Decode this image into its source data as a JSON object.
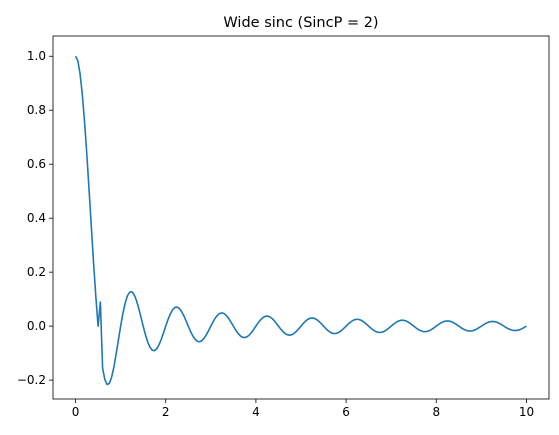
{
  "chart_data": {
    "type": "line",
    "title": "Wide sinc (SincP = 2)",
    "xlabel": "",
    "ylabel": "",
    "xlim": [
      -0.5,
      10.5
    ],
    "ylim": [
      -0.27,
      1.075
    ],
    "grid": false,
    "x_ticks": [
      0,
      2,
      4,
      6,
      8,
      10
    ],
    "x_tick_labels": [
      "0",
      "2",
      "4",
      "6",
      "8",
      "10"
    ],
    "y_ticks": [
      -0.2,
      0.0,
      0.2,
      0.4,
      0.6,
      0.8,
      1.0
    ],
    "y_tick_labels": [
      "−0.2",
      "0.0",
      "0.2",
      "0.4",
      "0.6",
      "0.8",
      "1.0"
    ],
    "series": [
      {
        "color": "#1f77b4",
        "x": [
          0,
          0.05,
          0.1,
          0.15,
          0.2,
          0.25,
          0.3,
          0.35,
          0.4,
          0.45,
          0.5,
          0.55,
          0.6,
          0.65,
          0.7,
          0.75,
          0.8,
          0.85,
          0.9,
          0.95,
          1.0,
          1.05,
          1.1,
          1.15,
          1.2,
          1.25,
          1.3,
          1.35,
          1.4,
          1.45,
          1.5,
          1.55,
          1.6,
          1.65,
          1.7,
          1.75,
          1.8,
          1.85,
          1.9,
          1.95,
          2.0,
          2.05,
          2.1,
          2.15,
          2.2,
          2.25,
          2.3,
          2.35,
          2.4,
          2.45,
          2.5,
          2.55,
          2.6,
          2.65,
          2.7,
          2.75,
          2.8,
          2.85,
          2.9,
          2.95,
          3.0,
          3.05,
          3.1,
          3.15,
          3.2,
          3.25,
          3.3,
          3.35,
          3.4,
          3.45,
          3.5,
          3.55,
          3.6,
          3.65,
          3.7,
          3.75,
          3.8,
          3.85,
          3.9,
          3.95,
          4.0,
          4.05,
          4.1,
          4.15,
          4.2,
          4.25,
          4.3,
          4.35,
          4.4,
          4.45,
          4.5,
          4.55,
          4.6,
          4.65,
          4.7,
          4.75,
          4.8,
          4.85,
          4.9,
          4.95,
          5.0,
          5.05,
          5.1,
          5.15,
          5.2,
          5.25,
          5.3,
          5.35,
          5.4,
          5.45,
          5.5,
          5.55,
          5.6,
          5.65,
          5.7,
          5.75,
          5.8,
          5.85,
          5.9,
          5.95,
          6.0,
          6.05,
          6.1,
          6.15,
          6.2,
          6.25,
          6.3,
          6.35,
          6.4,
          6.45,
          6.5,
          6.55,
          6.6,
          6.65,
          6.7,
          6.75,
          6.8,
          6.85,
          6.9,
          6.95,
          7.0,
          7.05,
          7.1,
          7.15,
          7.2,
          7.25,
          7.3,
          7.35,
          7.4,
          7.45,
          7.5,
          7.55,
          7.6,
          7.65,
          7.7,
          7.75,
          7.8,
          7.85,
          7.9,
          7.95,
          8.0,
          8.05,
          8.1,
          8.15,
          8.2,
          8.25,
          8.3,
          8.35,
          8.4,
          8.45,
          8.5,
          8.55,
          8.6,
          8.65,
          8.7,
          8.75,
          8.8,
          8.85,
          8.9,
          8.95,
          9.0,
          9.05,
          9.1,
          9.15,
          9.2,
          9.25,
          9.3,
          9.35,
          9.4,
          9.45,
          9.5,
          9.55,
          9.6,
          9.65,
          9.7,
          9.75,
          9.8,
          9.85,
          9.9,
          9.95,
          10.0
        ],
        "y": [
          1.0,
          0.9836,
          0.9355,
          0.8584,
          0.7568,
          0.6366,
          0.5046,
          0.3679,
          0.2339,
          0.1093,
          0.0,
          0.0893,
          -0.156,
          -0.1981,
          -0.2162,
          -0.2122,
          -0.1892,
          -0.1515,
          -0.1039,
          -0.0518,
          0.0,
          0.0468,
          0.0851,
          0.112,
          0.1261,
          0.1273,
          0.1164,
          0.0954,
          0.0668,
          0.0339,
          0.0,
          -0.0318,
          -0.0585,
          -0.0779,
          -0.089,
          -0.0909,
          -0.0841,
          -0.0696,
          -0.0492,
          -0.0252,
          0.0,
          0.024,
          0.0446,
          0.0599,
          0.0688,
          0.0707,
          0.0658,
          0.0548,
          0.039,
          0.02,
          0.0,
          -0.0193,
          -0.036,
          -0.0486,
          -0.0561,
          -0.0579,
          -0.0541,
          -0.0452,
          -0.0323,
          -0.0167,
          0.0,
          0.0162,
          0.0302,
          0.0409,
          0.0473,
          0.049,
          0.0459,
          0.0385,
          0.0275,
          0.0142,
          0.0,
          -0.0139,
          -0.026,
          -0.0353,
          -0.0409,
          -0.0424,
          -0.0398,
          -0.0334,
          -0.024,
          -0.0124,
          0.0,
          0.0122,
          0.0228,
          0.031,
          0.036,
          0.0374,
          0.0352,
          0.0296,
          0.0213,
          0.011,
          0.0,
          -0.0109,
          -0.0203,
          -0.0277,
          -0.0322,
          -0.0335,
          -0.0315,
          -0.0266,
          -0.0191,
          -0.0099,
          0.0,
          0.0098,
          0.0184,
          0.025,
          0.0291,
          0.0303,
          0.0286,
          0.0241,
          0.0173,
          0.009,
          0.0,
          -0.0089,
          -0.0167,
          -0.0228,
          -0.0265,
          -0.0277,
          -0.0261,
          -0.022,
          -0.0159,
          -0.0083,
          0.0,
          0.0082,
          0.0153,
          0.0209,
          0.0244,
          0.0255,
          0.024,
          0.0203,
          0.0147,
          0.0076,
          0.0,
          -0.0075,
          -0.0141,
          -0.0193,
          -0.0225,
          -0.0236,
          -0.0223,
          -0.0188,
          -0.0136,
          -0.0071,
          0.0,
          0.007,
          0.0131,
          0.018,
          0.021,
          0.022,
          0.0208,
          0.0176,
          0.0127,
          0.0066,
          0.0,
          -0.0065,
          -0.0123,
          -0.0168,
          -0.0196,
          -0.0206,
          -0.0195,
          -0.0165,
          -0.0119,
          -0.0062,
          0.0,
          0.0061,
          0.0115,
          0.0158,
          0.0184,
          0.0194,
          0.0183,
          0.0155,
          0.0112,
          0.0058,
          0.0,
          -0.0058,
          -0.0109,
          -0.0149,
          -0.0174,
          -0.0183,
          -0.0173,
          -0.0146,
          -0.0106,
          -0.0055,
          0.0,
          0.0055,
          0.0103,
          0.0141,
          0.0165,
          0.0173,
          0.0164,
          0.0139,
          0.0101,
          0.0052,
          0.0,
          -0.0052,
          -0.0098,
          -0.0134,
          -0.0156,
          -0.0164,
          -0.0155,
          -0.0132,
          -0.0096,
          -0.005,
          0.0
        ]
      }
    ]
  }
}
